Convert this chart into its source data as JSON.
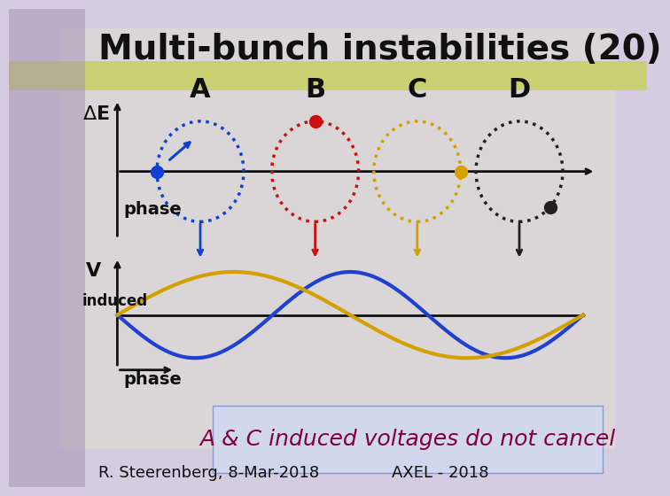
{
  "title": "Multi-bunch instabilities (20)",
  "title_fontsize": 28,
  "title_font": "Comic Sans MS",
  "bg_color": "#d4cce0",
  "title_bar_color": "#c8d060",
  "bunches": [
    "A",
    "B",
    "C",
    "D"
  ],
  "bunch_colors": [
    "#1040d0",
    "#cc1010",
    "#d4a000",
    "#202020"
  ],
  "wave_blue_color": "#2040d0",
  "wave_yellow_color": "#d4a000",
  "wave_lw": 3,
  "axis_color": "#101010",
  "text_color": "#101010",
  "label_font": "Comic Sans MS",
  "label_fontsize": 16,
  "annotation_text": "A & C induced voltages do not cancel",
  "annotation_fontsize": 18,
  "annotation_color": "#800040",
  "annotation_bg": "#d0d8f0",
  "footer_left": "R. Steerenberg, 8-Mar-2018",
  "footer_right": "AXEL - 2018",
  "footer_fontsize": 13
}
